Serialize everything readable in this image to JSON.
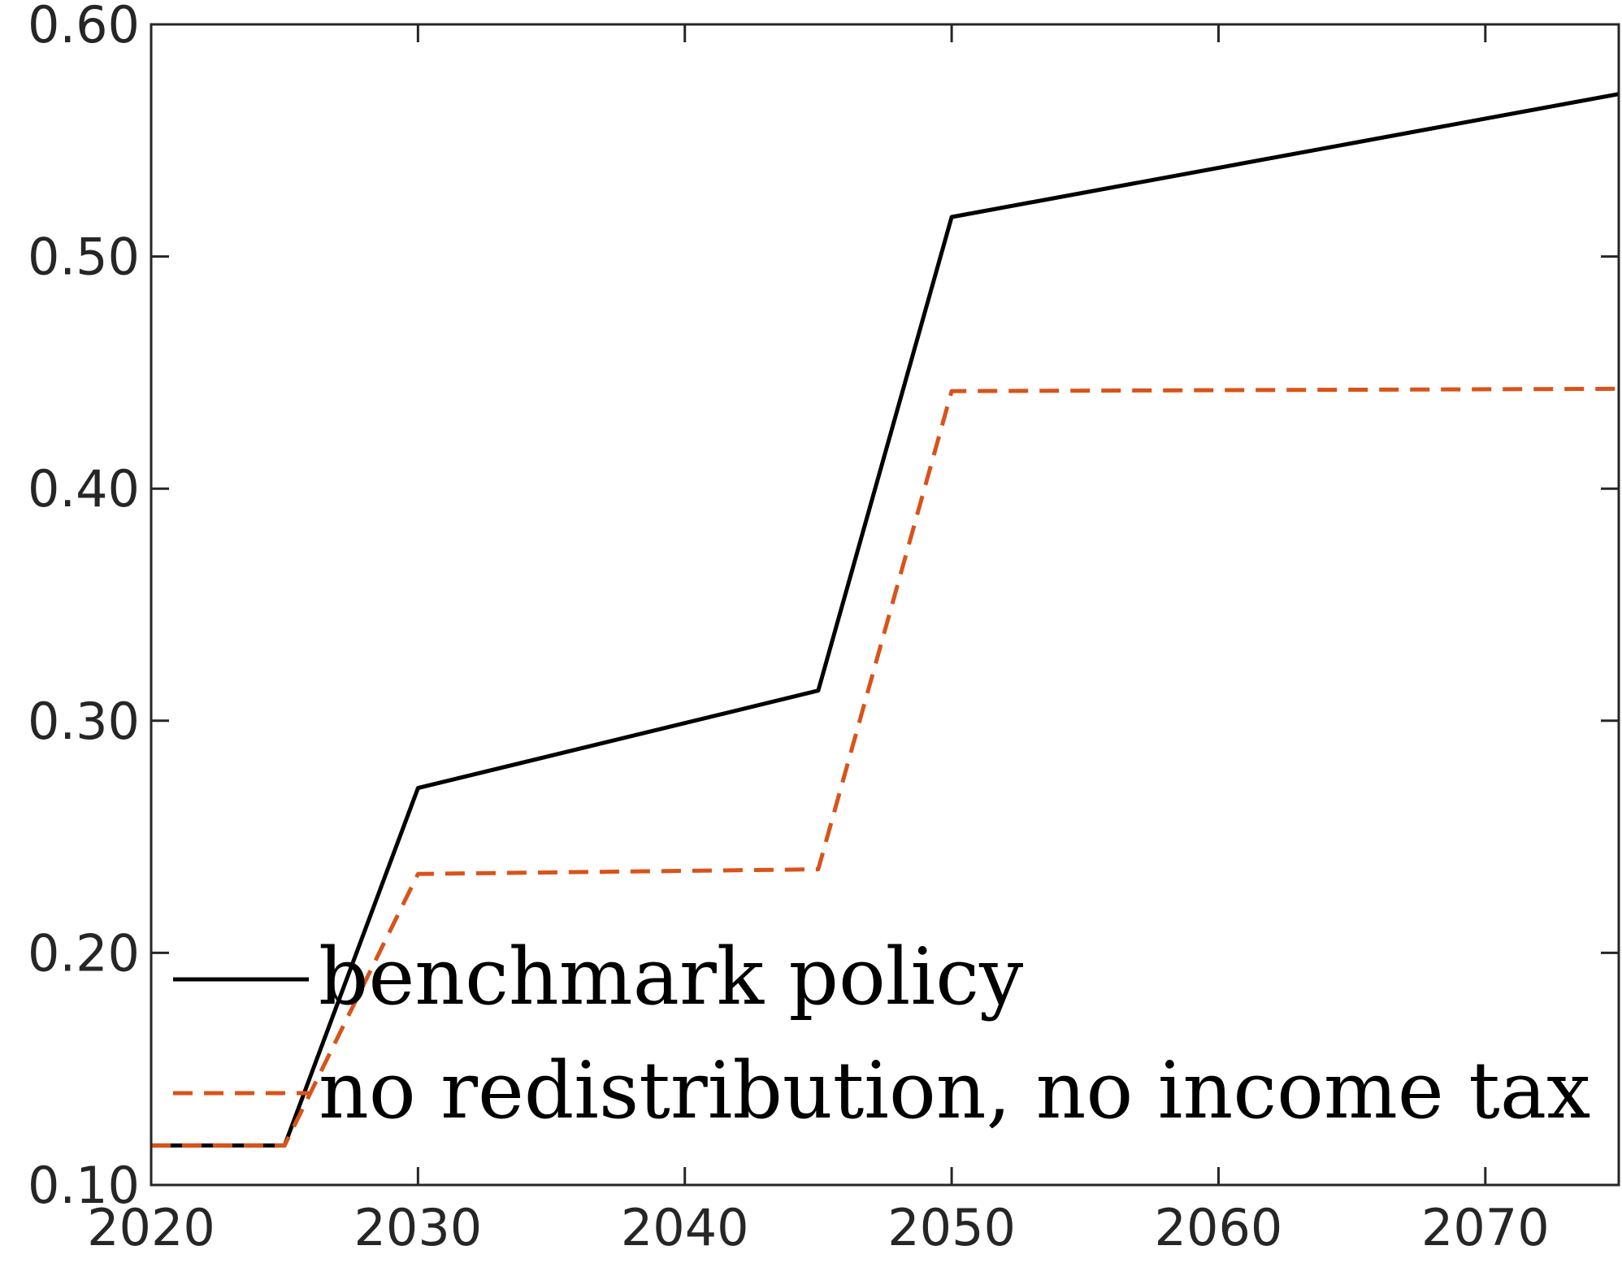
{
  "chart_data": {
    "type": "line",
    "title": "",
    "xlabel": "",
    "ylabel": "",
    "xlim": [
      2020,
      2075
    ],
    "ylim": [
      0.1,
      0.6
    ],
    "xticks": [
      2020,
      2030,
      2040,
      2050,
      2060,
      2070
    ],
    "xtick_labels": [
      "2020",
      "2030",
      "2040",
      "2050",
      "2060",
      "2070"
    ],
    "yticks": [
      0.1,
      0.2,
      0.3,
      0.4,
      0.5,
      0.6
    ],
    "ytick_labels": [
      "0.10",
      "0.20",
      "0.30",
      "0.40",
      "0.50",
      "0.60"
    ],
    "grid": false,
    "legend_position": "bottom-left",
    "series": [
      {
        "name": "benchmark policy",
        "color": "#000000",
        "style": "solid",
        "x": [
          2020,
          2025,
          2030,
          2045,
          2050,
          2075
        ],
        "y": [
          0.117,
          0.117,
          0.271,
          0.313,
          0.517,
          0.57
        ]
      },
      {
        "name": "no redistribution, no income tax",
        "color": "#D95319",
        "style": "dashed",
        "x": [
          2020,
          2025,
          2030,
          2045,
          2050,
          2075
        ],
        "y": [
          0.117,
          0.117,
          0.234,
          0.236,
          0.442,
          0.443
        ]
      }
    ]
  }
}
